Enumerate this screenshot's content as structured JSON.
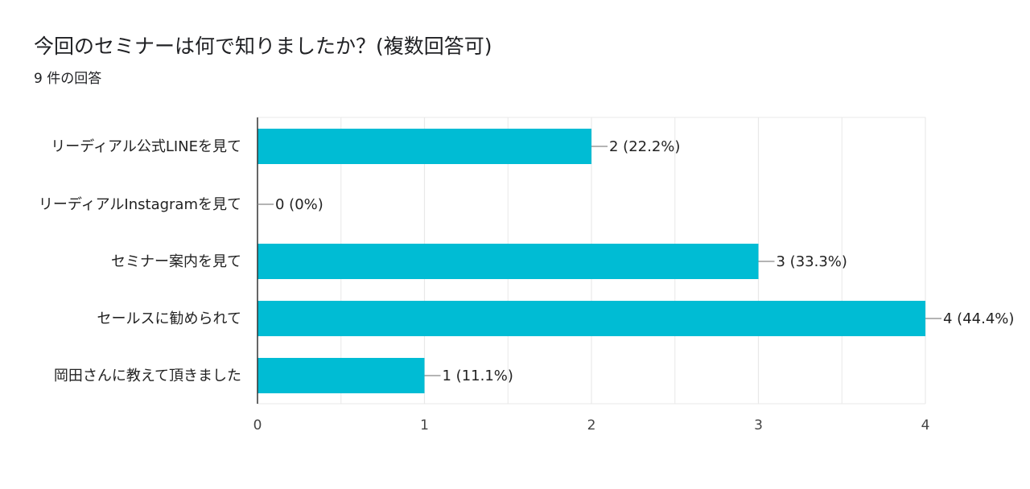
{
  "question": {
    "title": "今回のセミナーは何で知りましたか？(複数回答可)",
    "response_count": "9 件の回答"
  },
  "colors": {
    "bar": "#00bcd4",
    "axis": "#333333",
    "grid": "#e8e8e8",
    "leader": "#888888"
  },
  "chart_data": {
    "type": "bar",
    "orientation": "horizontal",
    "categories": [
      "リーディアル公式LINEを見て",
      "リーディアルInstagramを見て",
      "セミナー案内を見て",
      "セールスに勧められて",
      "岡田さんに教えて頂きました"
    ],
    "values": [
      2,
      0,
      3,
      4,
      1
    ],
    "value_labels": [
      "2 (22.2%)",
      "0 (0%)",
      "3 (33.3%)",
      "4 (44.4%)",
      "1 (11.1%)"
    ],
    "xlim": [
      0,
      4
    ],
    "x_ticks": [
      "0",
      "1",
      "2",
      "3",
      "4"
    ],
    "grid": true
  }
}
